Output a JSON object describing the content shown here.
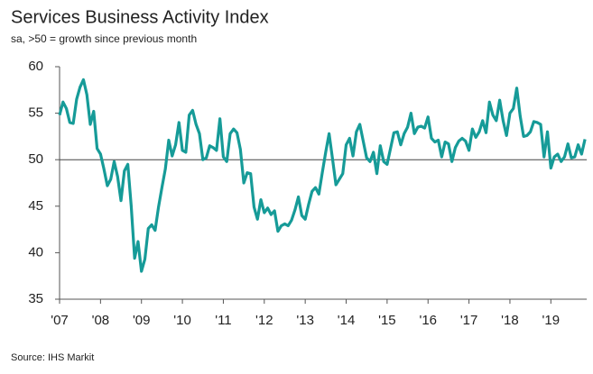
{
  "chart_data": {
    "type": "line",
    "title": "Services Business Activity Index",
    "subtitle": "sa, >50 = growth since previous month",
    "source": "Source: IHS Markit",
    "categories": [
      "'07",
      null,
      null,
      null,
      null,
      null,
      null,
      null,
      null,
      null,
      null,
      null,
      "'08",
      null,
      null,
      null,
      null,
      null,
      null,
      null,
      null,
      null,
      null,
      null,
      "'09",
      null,
      null,
      null,
      null,
      null,
      null,
      null,
      null,
      null,
      null,
      null,
      "'10",
      null,
      null,
      null,
      null,
      null,
      null,
      null,
      null,
      null,
      null,
      null,
      "'11",
      null,
      null,
      null,
      null,
      null,
      null,
      null,
      null,
      null,
      null,
      null,
      "'12",
      null,
      null,
      null,
      null,
      null,
      null,
      null,
      null,
      null,
      null,
      null,
      "'13",
      null,
      null,
      null,
      null,
      null,
      null,
      null,
      null,
      null,
      null,
      null,
      "'14",
      null,
      null,
      null,
      null,
      null,
      null,
      null,
      null,
      null,
      null,
      null,
      "'15",
      null,
      null,
      null,
      null,
      null,
      null,
      null,
      null,
      null,
      null,
      null,
      "'16",
      null,
      null,
      null,
      null,
      null,
      null,
      null,
      null,
      null,
      null,
      null,
      "'17",
      null,
      null,
      null,
      null,
      null,
      null,
      null,
      null,
      null,
      null,
      null,
      "'18",
      null,
      null,
      null,
      null,
      null,
      null,
      null,
      null,
      null,
      null,
      null,
      "'19",
      null,
      null,
      null,
      null,
      null,
      null,
      null,
      null,
      null,
      null
    ],
    "series": [
      {
        "color": "#169b98",
        "values": [
          54.8,
          56.2,
          55.5,
          54.0,
          53.9,
          56.5,
          57.8,
          58.6,
          57.0,
          53.8,
          55.2,
          51.2,
          50.6,
          49.0,
          47.2,
          47.9,
          49.8,
          48.2,
          45.6,
          48.8,
          49.5,
          45.0,
          39.4,
          41.2,
          38.0,
          39.3,
          42.6,
          43.0,
          42.4,
          44.9,
          47.0,
          49.0,
          52.1,
          50.4,
          51.6,
          54.0,
          51.0,
          50.8,
          54.8,
          55.3,
          53.8,
          52.8,
          50.0,
          50.2,
          51.5,
          51.3,
          51.0,
          54.4,
          50.3,
          49.8,
          52.8,
          53.3,
          52.9,
          51.1,
          47.5,
          48.6,
          48.5,
          44.9,
          43.6,
          45.7,
          44.3,
          44.8,
          44.1,
          44.5,
          42.3,
          42.9,
          43.1,
          42.9,
          43.5,
          44.6,
          46.0,
          44.0,
          43.6,
          45.2,
          46.6,
          47.0,
          46.3,
          48.6,
          50.8,
          52.8,
          50.1,
          47.3,
          47.9,
          48.5,
          51.6,
          52.3,
          50.4,
          53.0,
          53.8,
          52.0,
          50.2,
          49.8,
          50.8,
          48.5,
          51.5,
          49.8,
          49.5,
          51.2,
          52.9,
          53.0,
          51.6,
          52.8,
          53.5,
          55.0,
          52.8,
          53.5,
          53.6,
          53.4,
          54.6,
          52.3,
          51.9,
          52.1,
          50.3,
          51.9,
          51.7,
          49.8,
          51.3,
          52.0,
          52.3,
          52.0,
          51.0,
          53.3,
          52.4,
          53.0,
          54.2,
          52.9,
          56.2,
          54.8,
          54.2,
          56.4,
          54.2,
          52.6,
          55.0,
          55.5,
          57.7,
          54.7,
          52.5,
          52.6,
          53.0,
          54.1,
          54.0,
          53.8,
          50.3,
          53.0,
          49.1,
          50.3,
          50.6,
          49.8,
          50.3,
          51.7,
          50.2,
          50.3,
          51.6,
          50.6,
          52.2
        ]
      }
    ],
    "ylim": [
      35,
      60
    ],
    "yticks": [
      35,
      40,
      45,
      50,
      55,
      60
    ],
    "hline": 50,
    "grid": false
  }
}
